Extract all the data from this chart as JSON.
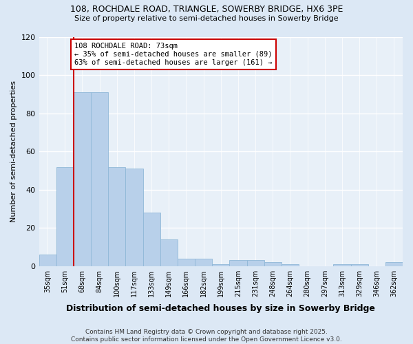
{
  "title1": "108, ROCHDALE ROAD, TRIANGLE, SOWERBY BRIDGE, HX6 3PE",
  "title2": "Size of property relative to semi-detached houses in Sowerby Bridge",
  "xlabel": "Distribution of semi-detached houses by size in Sowerby Bridge",
  "ylabel": "Number of semi-detached properties",
  "categories": [
    "35sqm",
    "51sqm",
    "68sqm",
    "84sqm",
    "100sqm",
    "117sqm",
    "133sqm",
    "149sqm",
    "166sqm",
    "182sqm",
    "199sqm",
    "215sqm",
    "231sqm",
    "248sqm",
    "264sqm",
    "280sqm",
    "297sqm",
    "313sqm",
    "329sqm",
    "346sqm",
    "362sqm"
  ],
  "values": [
    6,
    52,
    91,
    91,
    52,
    51,
    28,
    14,
    4,
    4,
    1,
    3,
    3,
    2,
    1,
    0,
    0,
    1,
    1,
    0,
    2
  ],
  "bar_color": "#b8d0ea",
  "bar_edge_color": "#90b8d8",
  "vline_x": 2.0,
  "vline_color": "#cc0000",
  "annotation_text": "108 ROCHDALE ROAD: 73sqm\n← 35% of semi-detached houses are smaller (89)\n63% of semi-detached houses are larger (161) →",
  "annotation_box_color": "#ffffff",
  "annotation_box_edge": "#cc0000",
  "ylim": [
    0,
    120
  ],
  "yticks": [
    0,
    20,
    40,
    60,
    80,
    100,
    120
  ],
  "footnote": "Contains HM Land Registry data © Crown copyright and database right 2025.\nContains public sector information licensed under the Open Government Licence v3.0.",
  "bg_color": "#dce8f5",
  "plot_bg_color": "#e8f0f8",
  "grid_color": "#ffffff",
  "title1_fontsize": 9,
  "title2_fontsize": 8
}
